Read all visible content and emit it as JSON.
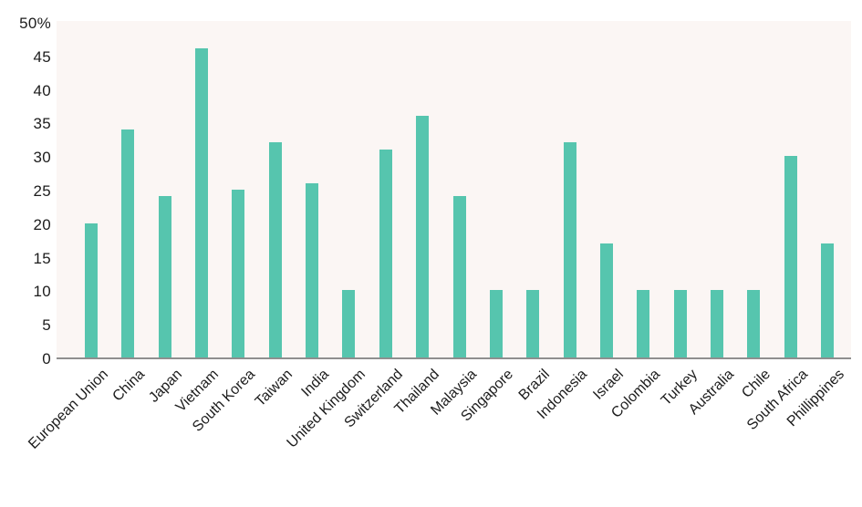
{
  "chart_data": {
    "type": "bar",
    "title": "",
    "xlabel": "",
    "ylabel": "",
    "ylim": [
      0,
      50
    ],
    "grid": false,
    "legend": false,
    "categories": [
      "European Union",
      "China",
      "Japan",
      "Vietnam",
      "South Korea",
      "Taiwan",
      "India",
      "United Kingdom",
      "Switzerland",
      "Thailand",
      "Malaysia",
      "Singapore",
      "Brazil",
      "Indonesia",
      "Israel",
      "Colombia",
      "Turkey",
      "Australia",
      "Chile",
      "South Africa",
      "Phillippines"
    ],
    "values": [
      20,
      34,
      24,
      46,
      25,
      32,
      26,
      10,
      31,
      36,
      24,
      10,
      10,
      32,
      17,
      10,
      10,
      10,
      10,
      30,
      17
    ],
    "y_ticks": [
      {
        "value": 50,
        "label": "50%"
      },
      {
        "value": 45,
        "label": "45"
      },
      {
        "value": 40,
        "label": "40"
      },
      {
        "value": 35,
        "label": "35"
      },
      {
        "value": 30,
        "label": "30"
      },
      {
        "value": 25,
        "label": "25"
      },
      {
        "value": 20,
        "label": "20"
      },
      {
        "value": 15,
        "label": "15"
      },
      {
        "value": 10,
        "label": "10"
      },
      {
        "value": 5,
        "label": "5"
      },
      {
        "value": 0,
        "label": "0"
      }
    ],
    "colors": {
      "bar": "#56C5AE",
      "plot_background": "#FBF6F4",
      "axis_line": "#8F8F8F",
      "text": "#1C1C1C",
      "page_background": "#FFFFFF"
    }
  }
}
